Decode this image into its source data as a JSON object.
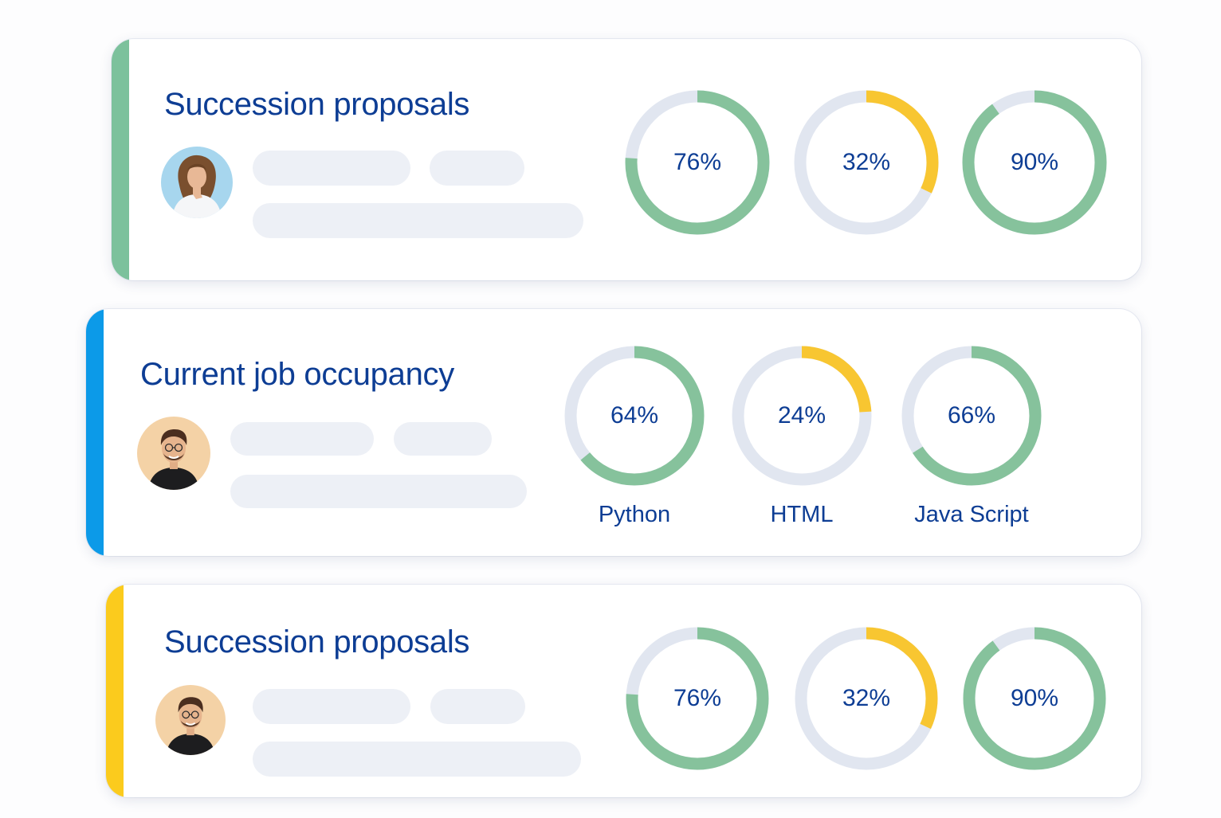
{
  "colors": {
    "title": "#0d3d94",
    "ring_track": "#e1e6f0",
    "ring_green": "#86c29c",
    "ring_yellow": "#f8c631",
    "accent_green": "#7cc19c",
    "accent_blue": "#0c9ae8",
    "accent_yellow": "#fbcb1d",
    "skeleton": "#edf0f6"
  },
  "cards": [
    {
      "title": "Succession proposals",
      "accent": "green",
      "avatar": "woman-avatar",
      "rings": [
        {
          "percent": 76,
          "label_text": "76%",
          "color": "green"
        },
        {
          "percent": 32,
          "label_text": "32%",
          "color": "yellow"
        },
        {
          "percent": 90,
          "label_text": "90%",
          "color": "green"
        }
      ]
    },
    {
      "title": "Current job occupancy",
      "accent": "blue",
      "avatar": "man-avatar",
      "rings": [
        {
          "percent": 64,
          "label_text": "64%",
          "color": "green",
          "skill": "Python"
        },
        {
          "percent": 24,
          "label_text": "24%",
          "color": "yellow",
          "skill": "HTML"
        },
        {
          "percent": 66,
          "label_text": "66%",
          "color": "green",
          "skill": "Java Script"
        }
      ]
    },
    {
      "title": "Succession proposals",
      "accent": "yellow",
      "avatar": "man-avatar",
      "rings": [
        {
          "percent": 76,
          "label_text": "76%",
          "color": "green"
        },
        {
          "percent": 32,
          "label_text": "32%",
          "color": "yellow"
        },
        {
          "percent": 90,
          "label_text": "90%",
          "color": "green"
        }
      ]
    }
  ]
}
